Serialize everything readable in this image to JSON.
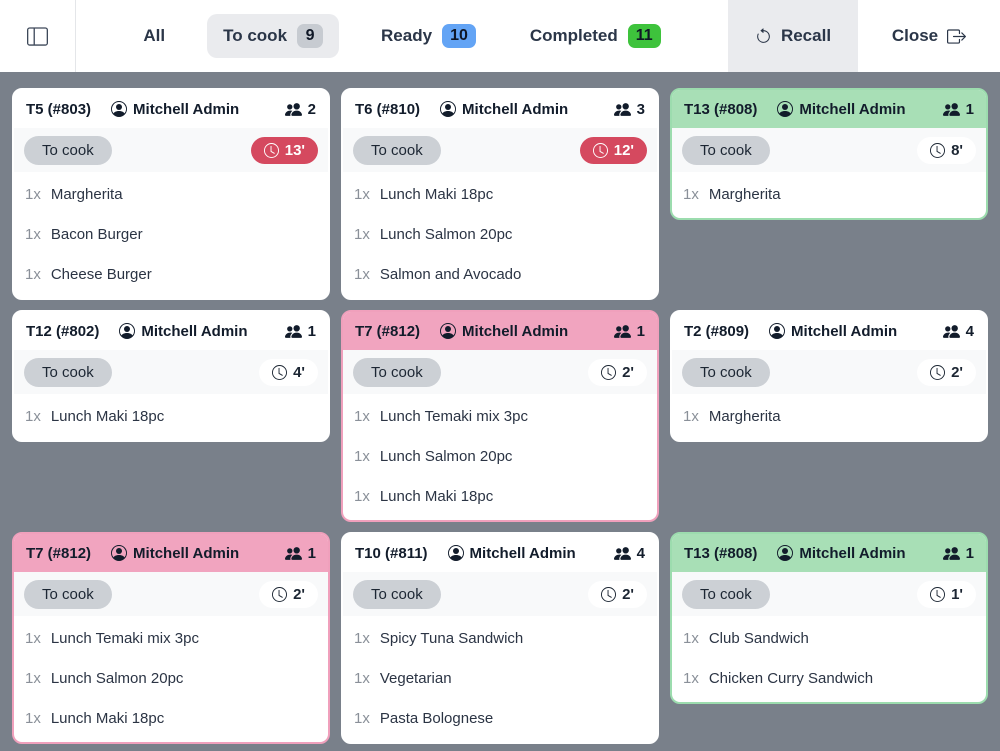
{
  "topbar": {
    "filters": [
      {
        "label": "All",
        "count": "",
        "badge": "none",
        "active": false
      },
      {
        "label": "To cook",
        "count": "9",
        "badge": "gray",
        "active": true
      },
      {
        "label": "Ready",
        "count": "10",
        "badge": "blue",
        "active": false
      },
      {
        "label": "Completed",
        "count": "11",
        "badge": "green",
        "active": false
      }
    ],
    "recall_label": "Recall",
    "close_label": "Close"
  },
  "icons": {
    "toggle": "panel-left",
    "server": "person-circle",
    "guests": "people-fill",
    "timer": "clock",
    "recall": "arrow-counterclockwise",
    "close": "box-arrow-right"
  },
  "colors": {
    "background": "#79808a",
    "late_timer": "#d5495f",
    "ready_badge": "#63a4f5",
    "completed_badge": "#3ec33c",
    "tocook_badge": "#c7cbd1",
    "success_card": "#a8dfb6",
    "pink_card": "#f1a4bf",
    "status_pill": "#ccd0d5"
  },
  "orders": [
    {
      "ref": "T5 (#803)",
      "server": "Mitchell Admin",
      "guests": "2",
      "status": "To cook",
      "timer": "13'",
      "late": true,
      "variant": "default",
      "items": [
        {
          "qty": "1x",
          "name": "Margherita"
        },
        {
          "qty": "1x",
          "name": "Bacon Burger"
        },
        {
          "qty": "1x",
          "name": "Cheese Burger"
        }
      ]
    },
    {
      "ref": "T6 (#810)",
      "server": "Mitchell Admin",
      "guests": "3",
      "status": "To cook",
      "timer": "12'",
      "late": true,
      "variant": "default",
      "items": [
        {
          "qty": "1x",
          "name": "Lunch Maki 18pc"
        },
        {
          "qty": "1x",
          "name": "Lunch Salmon 20pc"
        },
        {
          "qty": "1x",
          "name": "Salmon and Avocado"
        }
      ]
    },
    {
      "ref": "T13 (#808)",
      "server": "Mitchell Admin",
      "guests": "1",
      "status": "To cook",
      "timer": "8'",
      "late": false,
      "variant": "success",
      "items": [
        {
          "qty": "1x",
          "name": "Margherita"
        }
      ]
    },
    {
      "ref": "T12 (#802)",
      "server": "Mitchell Admin",
      "guests": "1",
      "status": "To cook",
      "timer": "4'",
      "late": false,
      "variant": "default",
      "items": [
        {
          "qty": "1x",
          "name": "Lunch Maki 18pc"
        }
      ]
    },
    {
      "ref": "T7 (#812)",
      "server": "Mitchell Admin",
      "guests": "1",
      "status": "To cook",
      "timer": "2'",
      "late": false,
      "variant": "pink",
      "items": [
        {
          "qty": "1x",
          "name": "Lunch Temaki mix 3pc"
        },
        {
          "qty": "1x",
          "name": "Lunch Salmon 20pc"
        },
        {
          "qty": "1x",
          "name": "Lunch Maki 18pc"
        }
      ]
    },
    {
      "ref": "T2 (#809)",
      "server": "Mitchell Admin",
      "guests": "4",
      "status": "To cook",
      "timer": "2'",
      "late": false,
      "variant": "default",
      "items": [
        {
          "qty": "1x",
          "name": "Margherita"
        }
      ]
    },
    {
      "ref": "T7 (#812)",
      "server": "Mitchell Admin",
      "guests": "1",
      "status": "To cook",
      "timer": "2'",
      "late": false,
      "variant": "pink",
      "items": [
        {
          "qty": "1x",
          "name": "Lunch Temaki mix 3pc"
        },
        {
          "qty": "1x",
          "name": "Lunch Salmon 20pc"
        },
        {
          "qty": "1x",
          "name": "Lunch Maki 18pc"
        }
      ]
    },
    {
      "ref": "T10 (#811)",
      "server": "Mitchell Admin",
      "guests": "4",
      "status": "To cook",
      "timer": "2'",
      "late": false,
      "variant": "default",
      "items": [
        {
          "qty": "1x",
          "name": "Spicy Tuna Sandwich"
        },
        {
          "qty": "1x",
          "name": "Vegetarian"
        },
        {
          "qty": "1x",
          "name": "Pasta Bolognese"
        }
      ]
    },
    {
      "ref": "T13 (#808)",
      "server": "Mitchell Admin",
      "guests": "1",
      "status": "To cook",
      "timer": "1'",
      "late": false,
      "variant": "success",
      "items": [
        {
          "qty": "1x",
          "name": "Club Sandwich"
        },
        {
          "qty": "1x",
          "name": "Chicken Curry Sandwich"
        }
      ]
    }
  ]
}
